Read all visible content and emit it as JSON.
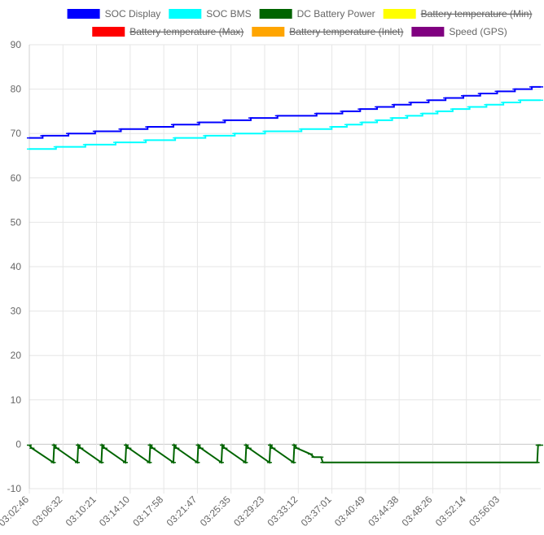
{
  "chart_data": {
    "type": "line",
    "title": "",
    "xlabel": "",
    "ylabel": "",
    "ylim": [
      -10,
      90
    ],
    "y_ticks": [
      90,
      80,
      70,
      60,
      50,
      40,
      30,
      20,
      10,
      0,
      -10
    ],
    "x_tick_labels": [
      "03:02:46",
      "03:06:32",
      "03:10:21",
      "03:14:10",
      "03:17:58",
      "03:21:47",
      "03:25:35",
      "03:29:23",
      "03:33:12",
      "03:37:01",
      "03:40:49",
      "03:44:38",
      "03:48:26",
      "03:52:14",
      "03:56:03"
    ],
    "x_range_minutes": [
      0,
      57.5
    ],
    "grid": true,
    "legend_position": "top",
    "legend": [
      {
        "name": "SOC Display",
        "color": "#0000ff",
        "hidden": false
      },
      {
        "name": "SOC BMS",
        "color": "#00ffff",
        "hidden": false
      },
      {
        "name": "DC Battery Power",
        "color": "#006400",
        "hidden": false
      },
      {
        "name": "Battery temperature (Min)",
        "color": "#ffff00",
        "hidden": true
      },
      {
        "name": "Battery temperature (Max)",
        "color": "#ff0000",
        "hidden": true
      },
      {
        "name": "Battery temperature (Inlet)",
        "color": "#ffa500",
        "hidden": true
      },
      {
        "name": "Speed (GPS)",
        "color": "#800080",
        "hidden": false
      }
    ],
    "series": [
      {
        "name": "SOC Display",
        "color": "#0000ff",
        "step": true,
        "points": [
          [
            0,
            69
          ],
          [
            1.5,
            69.5
          ],
          [
            4.4,
            70
          ],
          [
            7.4,
            70.5
          ],
          [
            10.3,
            71
          ],
          [
            13.3,
            71.5
          ],
          [
            16.2,
            72
          ],
          [
            19.1,
            72.5
          ],
          [
            22,
            73
          ],
          [
            24.9,
            73.5
          ],
          [
            27.9,
            74
          ],
          [
            32.3,
            74.5
          ],
          [
            35.2,
            75
          ],
          [
            37.2,
            75.5
          ],
          [
            39.1,
            76
          ],
          [
            41,
            76.5
          ],
          [
            42.9,
            77
          ],
          [
            44.9,
            77.5
          ],
          [
            46.8,
            78
          ],
          [
            48.8,
            78.5
          ],
          [
            50.7,
            79
          ],
          [
            52.6,
            79.5
          ],
          [
            54.6,
            80
          ],
          [
            56.5,
            80.5
          ],
          [
            57.5,
            80.5
          ]
        ]
      },
      {
        "name": "SOC BMS",
        "color": "#00ffff",
        "step": true,
        "points": [
          [
            0,
            66.5
          ],
          [
            3,
            67
          ],
          [
            6.3,
            67.5
          ],
          [
            9.7,
            68
          ],
          [
            13.1,
            68.5
          ],
          [
            16.4,
            69
          ],
          [
            19.8,
            69.5
          ],
          [
            23.1,
            70
          ],
          [
            26.5,
            70.5
          ],
          [
            30.6,
            71
          ],
          [
            34,
            71.5
          ],
          [
            35.7,
            72
          ],
          [
            37.4,
            72.5
          ],
          [
            39.1,
            73
          ],
          [
            40.8,
            73.5
          ],
          [
            42.5,
            74
          ],
          [
            44.2,
            74.5
          ],
          [
            45.9,
            75
          ],
          [
            47.6,
            75.5
          ],
          [
            49.5,
            76
          ],
          [
            51.4,
            76.5
          ],
          [
            53.3,
            77
          ],
          [
            55.2,
            77.5
          ],
          [
            57.5,
            77.5
          ]
        ]
      },
      {
        "name": "DC Battery Power",
        "color": "#006400",
        "step": false,
        "points": [
          [
            0,
            -0.2
          ],
          [
            0.3,
            -0.9
          ],
          [
            2.7,
            -4.1
          ],
          [
            2.8,
            -0.2
          ],
          [
            3.1,
            -0.9
          ],
          [
            5.4,
            -4.1
          ],
          [
            5.5,
            -0.2
          ],
          [
            5.8,
            -0.9
          ],
          [
            8.1,
            -4.1
          ],
          [
            8.2,
            -0.2
          ],
          [
            8.5,
            -0.9
          ],
          [
            10.8,
            -4.1
          ],
          [
            10.9,
            -0.2
          ],
          [
            11.2,
            -0.9
          ],
          [
            13.5,
            -4.1
          ],
          [
            13.6,
            -0.2
          ],
          [
            13.9,
            -0.9
          ],
          [
            16.2,
            -4.1
          ],
          [
            16.3,
            -0.2
          ],
          [
            16.6,
            -0.9
          ],
          [
            18.9,
            -4.1
          ],
          [
            19,
            -0.2
          ],
          [
            19.3,
            -0.9
          ],
          [
            21.6,
            -4.1
          ],
          [
            21.7,
            -0.2
          ],
          [
            22,
            -0.9
          ],
          [
            24.3,
            -4.1
          ],
          [
            24.4,
            -0.2
          ],
          [
            24.7,
            -0.9
          ],
          [
            27,
            -4.1
          ],
          [
            27.1,
            -0.2
          ],
          [
            27.4,
            -0.9
          ],
          [
            29.7,
            -4.1
          ],
          [
            29.8,
            -0.2
          ],
          [
            30.1,
            -0.9
          ],
          [
            31.6,
            -2.2
          ],
          [
            32,
            -2.9
          ],
          [
            32.8,
            -2.9
          ],
          [
            33,
            -4.1
          ],
          [
            57.1,
            -4.1
          ],
          [
            57.2,
            -0.2
          ],
          [
            57.5,
            -0.2
          ]
        ]
      }
    ]
  }
}
